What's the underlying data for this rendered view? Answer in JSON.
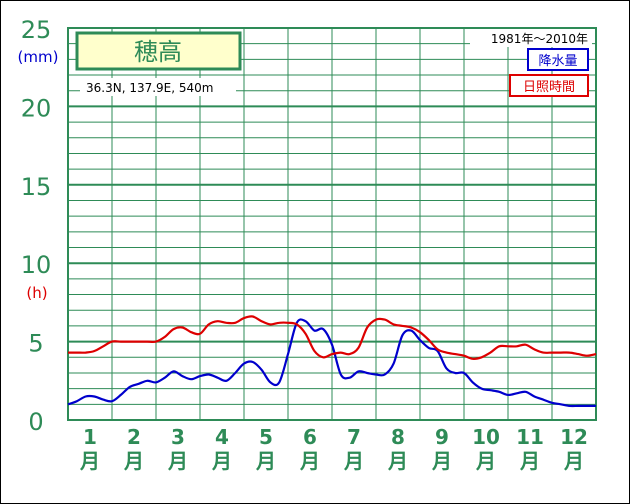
{
  "station": {
    "name": "穂高",
    "location": "36.3N,  137.9E,  540m",
    "period": "1981年〜2010年"
  },
  "legend": [
    {
      "label": "降水量",
      "color": "#0000cc"
    },
    {
      "label": "日照時間",
      "color": "#dd0000"
    }
  ],
  "units": {
    "precip": "(mm)",
    "sunshine": "(h)"
  },
  "colors": {
    "grid": "#2e8b57",
    "axis_text": "#2e8b57",
    "title_bg": "#ffffcc"
  },
  "chart_data": {
    "type": "line",
    "x_unit": "month",
    "x": [
      1,
      2,
      3,
      4,
      5,
      6,
      7,
      8,
      9,
      10,
      11,
      12
    ],
    "categories": [
      "1月",
      "2月",
      "3月",
      "4月",
      "5月",
      "6月",
      "7月",
      "8月",
      "9月",
      "10月",
      "11月",
      "12月"
    ],
    "ylim": [
      0,
      25
    ],
    "yticks": [
      "0",
      "5",
      "10",
      "15",
      "20",
      "25"
    ],
    "grid": true,
    "legend_position": "top-right",
    "series": [
      {
        "name": "降水量",
        "color": "#0000cc",
        "x": [
          0.5,
          0.7,
          0.9,
          1.1,
          1.3,
          1.5,
          1.7,
          1.9,
          2.1,
          2.3,
          2.5,
          2.7,
          2.9,
          3.1,
          3.3,
          3.5,
          3.7,
          3.9,
          4.1,
          4.3,
          4.5,
          4.7,
          4.9,
          5.1,
          5.3,
          5.5,
          5.7,
          5.9,
          6.1,
          6.3,
          6.5,
          6.7,
          6.9,
          7.1,
          7.3,
          7.5,
          7.7,
          7.9,
          8.1,
          8.3,
          8.5,
          8.7,
          8.9,
          9.1,
          9.3,
          9.5,
          9.7,
          9.9,
          10.1,
          10.3,
          10.5,
          10.7,
          10.9,
          11.1,
          11.3,
          11.5,
          11.7,
          11.9,
          12.1,
          12.3,
          12.5
        ],
        "values": [
          1.0,
          1.2,
          1.5,
          1.5,
          1.3,
          1.2,
          1.6,
          2.1,
          2.3,
          2.5,
          2.4,
          2.7,
          3.1,
          2.8,
          2.6,
          2.8,
          2.9,
          2.7,
          2.5,
          3.0,
          3.6,
          3.7,
          3.2,
          2.4,
          2.4,
          4.2,
          6.2,
          6.3,
          5.7,
          5.8,
          4.8,
          2.9,
          2.7,
          3.1,
          3.0,
          2.9,
          2.9,
          3.6,
          5.4,
          5.7,
          5.1,
          4.6,
          4.4,
          3.3,
          3.0,
          3.0,
          2.4,
          2.0,
          1.9,
          1.8,
          1.6,
          1.7,
          1.8,
          1.5,
          1.3,
          1.1,
          1.0,
          0.9,
          0.9,
          0.9,
          0.9
        ]
      },
      {
        "name": "日照時間",
        "color": "#dd0000",
        "x": [
          0.5,
          0.7,
          0.9,
          1.1,
          1.3,
          1.5,
          1.7,
          1.9,
          2.1,
          2.3,
          2.5,
          2.7,
          2.9,
          3.1,
          3.3,
          3.5,
          3.7,
          3.9,
          4.1,
          4.3,
          4.5,
          4.7,
          4.9,
          5.1,
          5.3,
          5.5,
          5.7,
          5.9,
          6.1,
          6.3,
          6.5,
          6.7,
          6.9,
          7.1,
          7.3,
          7.5,
          7.7,
          7.9,
          8.1,
          8.3,
          8.5,
          8.7,
          8.9,
          9.1,
          9.3,
          9.5,
          9.7,
          9.9,
          10.1,
          10.3,
          10.5,
          10.7,
          10.9,
          11.1,
          11.3,
          11.5,
          11.7,
          11.9,
          12.1,
          12.3,
          12.5
        ],
        "values": [
          4.3,
          4.3,
          4.3,
          4.4,
          4.7,
          5.0,
          5.0,
          5.0,
          5.0,
          5.0,
          5.0,
          5.3,
          5.8,
          5.9,
          5.6,
          5.5,
          6.1,
          6.3,
          6.2,
          6.2,
          6.5,
          6.6,
          6.3,
          6.1,
          6.2,
          6.2,
          6.1,
          5.5,
          4.4,
          4.0,
          4.2,
          4.3,
          4.2,
          4.6,
          5.9,
          6.4,
          6.4,
          6.1,
          6.0,
          5.9,
          5.6,
          5.1,
          4.5,
          4.3,
          4.2,
          4.1,
          3.9,
          4.0,
          4.3,
          4.7,
          4.7,
          4.7,
          4.8,
          4.5,
          4.3,
          4.3,
          4.3,
          4.3,
          4.2,
          4.1,
          4.2
        ]
      }
    ]
  }
}
